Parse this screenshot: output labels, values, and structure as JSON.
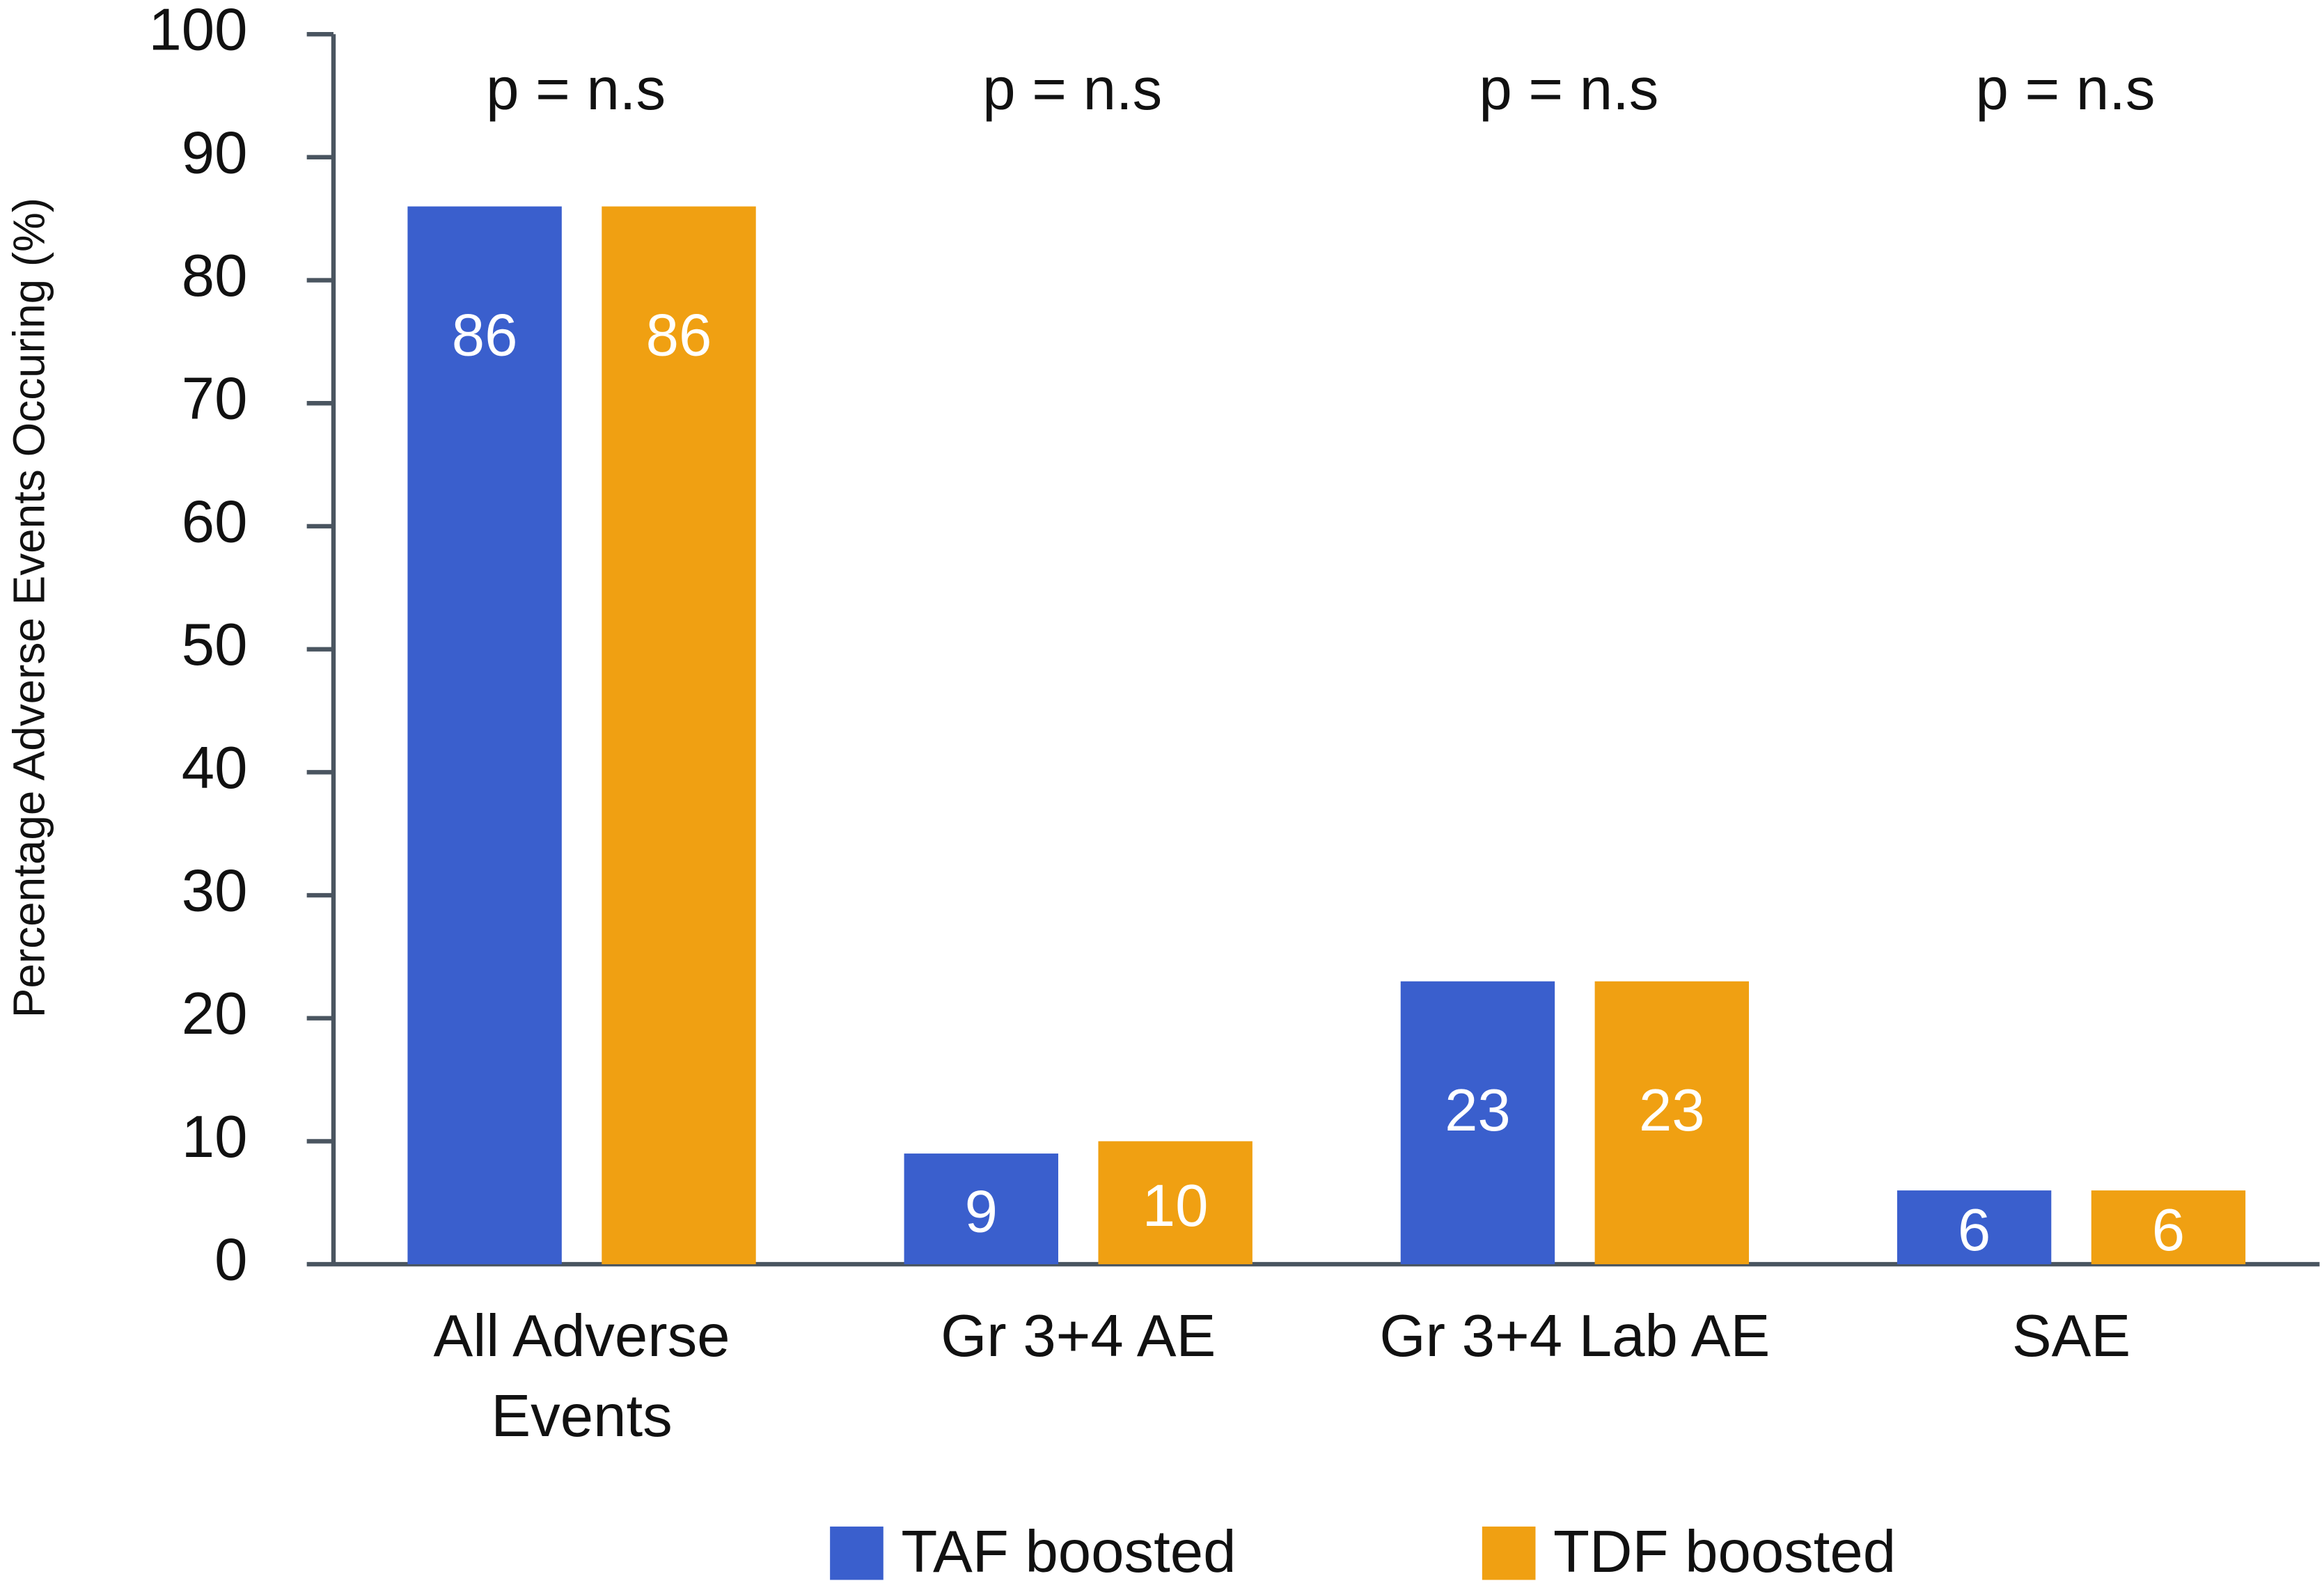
{
  "chart_data": {
    "type": "bar",
    "y_label": "Percentage Adverse Events Occuring (%)",
    "categories": [
      "All Adverse Events",
      "Gr 3+4 AE",
      "Gr 3+4 Lab AE",
      "SAE"
    ],
    "annotations": [
      "p = n.s",
      "p = n.s",
      "p = n.s",
      "p = n.s"
    ],
    "series": [
      {
        "name": "TAF boosted",
        "color": "#3a5fcd",
        "values": [
          86,
          9,
          23,
          6
        ]
      },
      {
        "name": "TDF boosted",
        "color": "#f0a012",
        "values": [
          86,
          10,
          23,
          6
        ]
      }
    ],
    "ylim": [
      0,
      100
    ],
    "yticks": [
      0,
      10,
      20,
      30,
      40,
      50,
      60,
      70,
      80,
      90,
      100
    ],
    "legend": "bottom"
  }
}
